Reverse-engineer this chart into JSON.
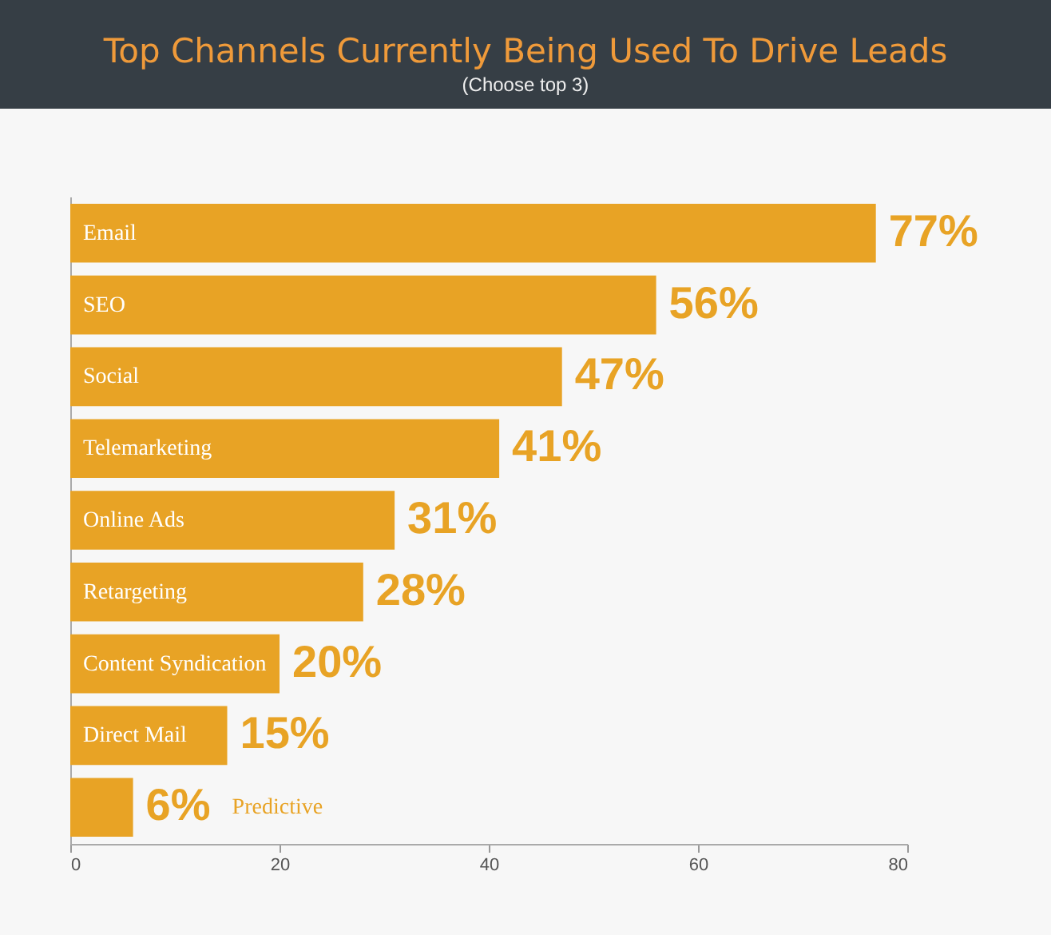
{
  "chart_data": {
    "type": "bar",
    "orientation": "horizontal",
    "title": "Top Channels Currently Being Used To Drive Leads",
    "subtitle": "(Choose top 3)",
    "categories": [
      "Email",
      "SEO",
      "Social",
      "Telemarketing",
      "Online Ads",
      "Retargeting",
      "Content Syndication",
      "Direct Mail",
      "Predictive"
    ],
    "values": [
      77,
      56,
      47,
      41,
      31,
      28,
      20,
      15,
      6
    ],
    "value_labels": [
      "77%",
      "56%",
      "47%",
      "41%",
      "31%",
      "28%",
      "20%",
      "15%",
      "6%"
    ],
    "color": "#e8a325",
    "xlim": [
      0,
      80
    ],
    "xticks": [
      0,
      20,
      40,
      60,
      80
    ],
    "grid": false
  }
}
